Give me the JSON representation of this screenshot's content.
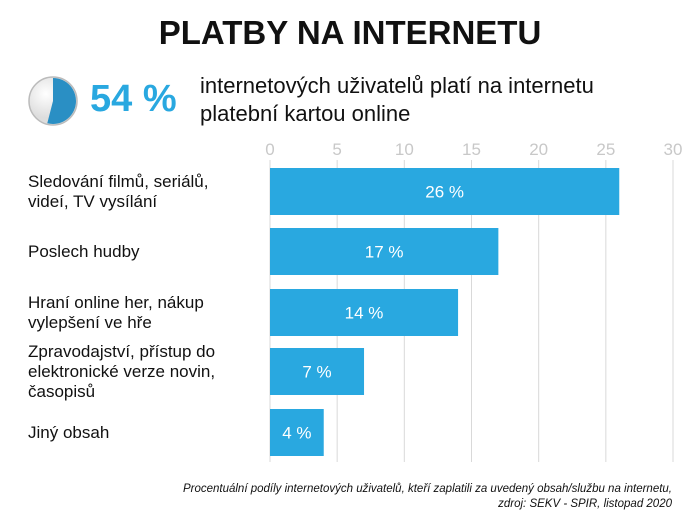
{
  "title": "PLATBY NA INTERNETU",
  "headline": {
    "value": "54 %",
    "fraction": 0.54,
    "text_line1": "internetových uživatelů platí na internetu",
    "text_line2": "platební kartou online"
  },
  "colors": {
    "bar": "#29a8e0",
    "accent": "#29a8e0",
    "grid": "#d9d9d9"
  },
  "chart_data": {
    "type": "bar",
    "orientation": "horizontal",
    "categories": [
      [
        "Sledování filmů, seriálů,",
        "videí, TV vysílání"
      ],
      [
        "Poslech hudby"
      ],
      [
        "Hraní online her, nákup",
        "vylepšení ve hře"
      ],
      [
        "Zpravodajství, přístup do",
        "elektronické verze novin,",
        "časopisů"
      ],
      [
        "Jiný obsah"
      ]
    ],
    "values": [
      26,
      17,
      14,
      7,
      4
    ],
    "data_labels": [
      "26 %",
      "17 %",
      "14 %",
      "7 %",
      "4 %"
    ],
    "xlim": [
      0,
      30
    ],
    "xticks": [
      0,
      5,
      10,
      15,
      20,
      25,
      30
    ],
    "grid": true,
    "axis_position": "top"
  },
  "note": {
    "line1": "Procentuální podíly internetových uživatelů, kteří zaplatili za uvedený obsah/službu na internetu,",
    "line2": "zdroj: SEKV - SPIR, listopad 2020"
  }
}
